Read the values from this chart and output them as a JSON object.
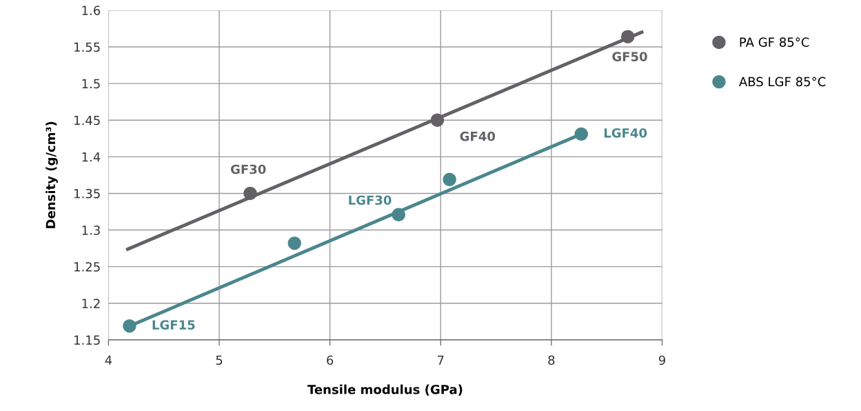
{
  "chart_data": {
    "type": "scatter",
    "xlabel": "Tensile modulus (GPa)",
    "ylabel": "Density (g/cm³)",
    "xlim": [
      4,
      9
    ],
    "ylim": [
      1.15,
      1.6
    ],
    "xticks": [
      4,
      5,
      6,
      7,
      8,
      9
    ],
    "yticks": [
      1.15,
      1.2,
      1.25,
      1.3,
      1.35,
      1.4,
      1.45,
      1.5,
      1.55,
      1.6
    ],
    "grid": true,
    "legend": "right",
    "marker": "circle",
    "series": [
      {
        "name": "PA GF 85°C",
        "color": "#636166",
        "x": [
          5.28,
          6.97,
          8.69
        ],
        "values": [
          1.35,
          1.45,
          1.564
        ]
      },
      {
        "name": "ABS LGF 85°C",
        "color": "#4a878d",
        "x": [
          4.19,
          5.68,
          6.62,
          7.08,
          8.27
        ],
        "values": [
          1.169,
          1.282,
          1.321,
          1.369,
          1.431
        ]
      },
      {
        "type": "line",
        "marker": "none",
        "color": "#636166",
        "x": [
          4.16,
          8.83
        ],
        "values": [
          1.273,
          1.571
        ]
      },
      {
        "type": "line",
        "marker": "none",
        "color": "#4a878d",
        "x": [
          4.19,
          8.27
        ],
        "values": [
          1.169,
          1.431
        ]
      }
    ],
    "annotations": [
      {
        "text": "GF30",
        "x": 5.28,
        "y": 1.35
      },
      {
        "text": "GF40",
        "x": 6.97,
        "y": 1.45
      },
      {
        "text": "GF50",
        "x": 8.69,
        "y": 1.564
      },
      {
        "text": "LGF15",
        "x": 4.19,
        "y": 1.169
      },
      {
        "text": "LGF30",
        "x": 6.62,
        "y": 1.321
      },
      {
        "text": "LGF40",
        "x": 8.27,
        "y": 1.431
      }
    ]
  }
}
